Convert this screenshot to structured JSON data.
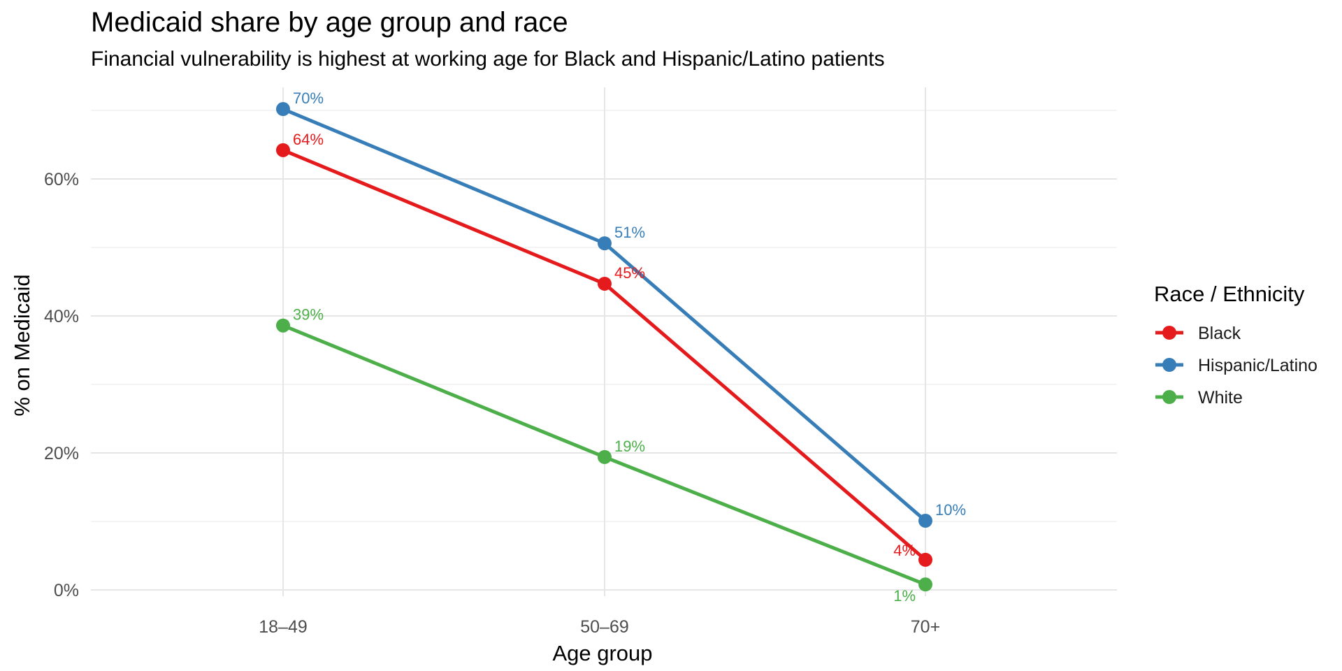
{
  "chart_data": {
    "type": "line",
    "title": "Medicaid share by age group and race",
    "subtitle": "Financial vulnerability is highest at working age for Black and Hispanic/Latino patients",
    "xlabel": "Age group",
    "ylabel": "% on Medicaid",
    "categories": [
      "18–49",
      "50–69",
      "70+"
    ],
    "ylim": [
      0,
      72
    ],
    "y_ticks": [
      0,
      20,
      40,
      60
    ],
    "y_tick_labels": [
      "0%",
      "20%",
      "40%",
      "60%"
    ],
    "grid": true,
    "legend": {
      "title": "Race / Ethnicity",
      "position": "right"
    },
    "series": [
      {
        "name": "Black",
        "color": "#e41a1c",
        "values": [
          64.2,
          44.7,
          4.4
        ],
        "labels": [
          "64%",
          "45%",
          "4%"
        ]
      },
      {
        "name": "Hispanic/Latino",
        "color": "#377eb8",
        "values": [
          70.2,
          50.6,
          10.1
        ],
        "labels": [
          "70%",
          "51%",
          "10%"
        ]
      },
      {
        "name": "White",
        "color": "#4daf4a",
        "values": [
          38.6,
          19.4,
          0.8
        ],
        "labels": [
          "39%",
          "19%",
          "1%"
        ]
      }
    ]
  }
}
